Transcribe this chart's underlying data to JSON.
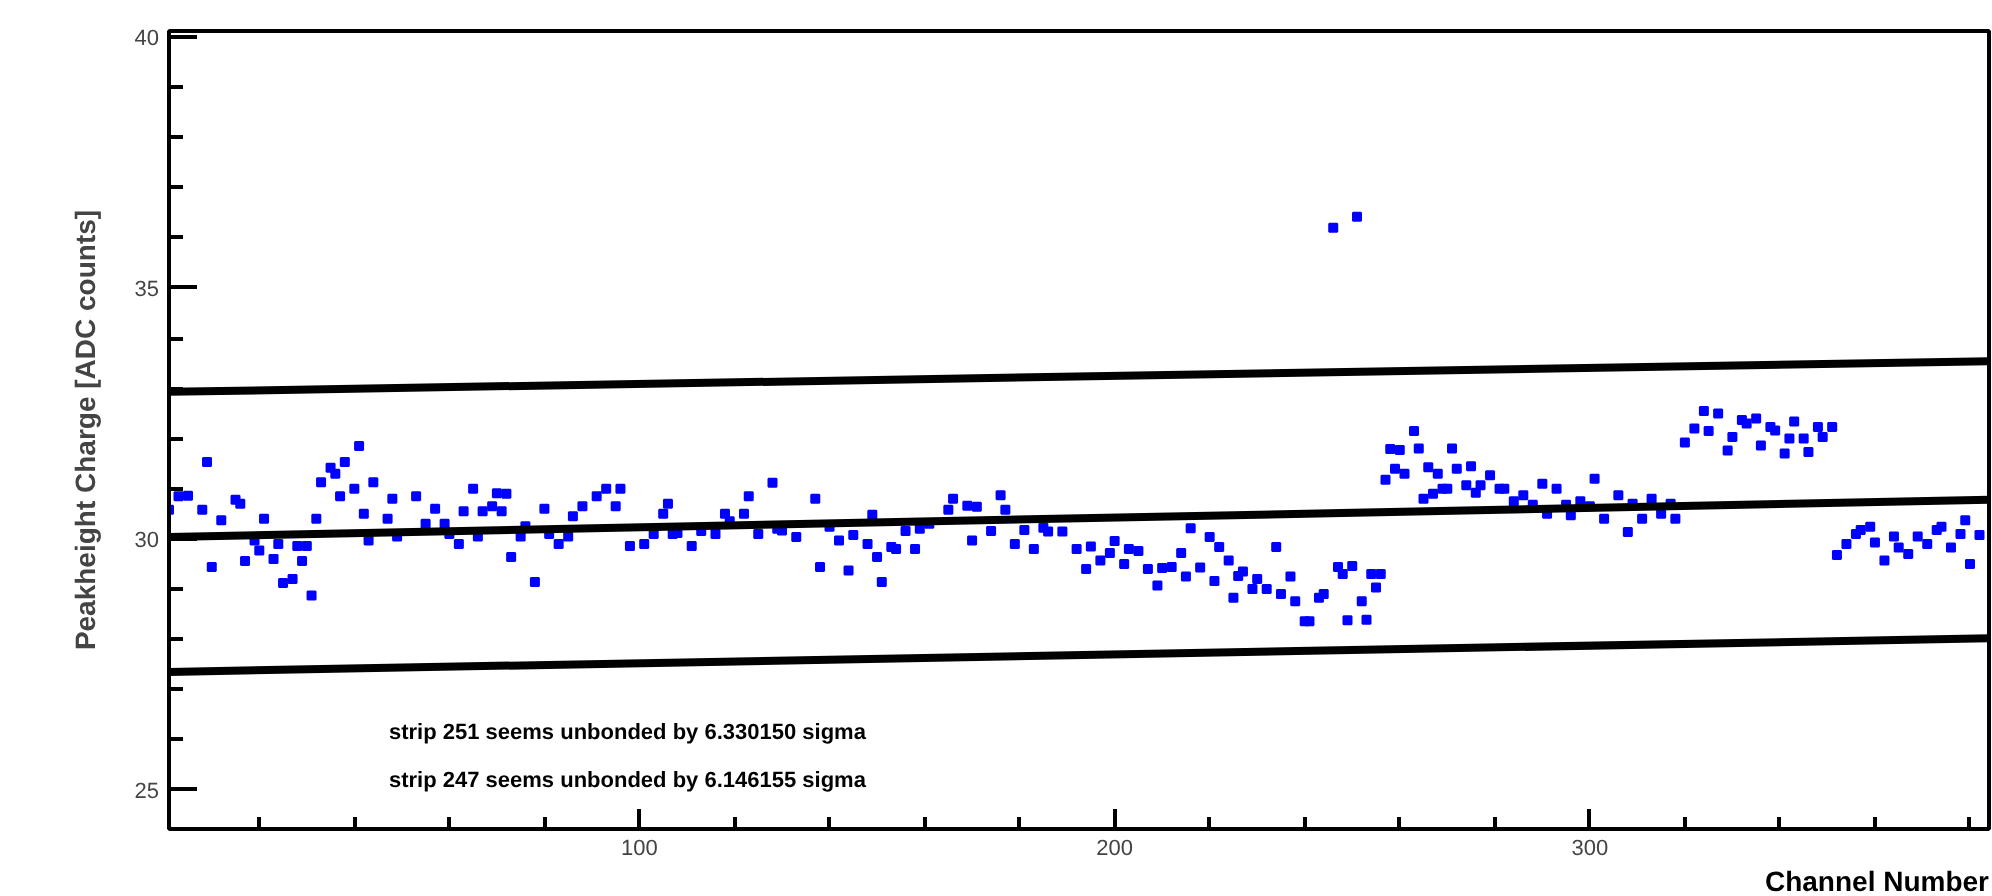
{
  "chart_data": {
    "type": "scatter",
    "xlabel": "Channel Number",
    "ylabel": "Peakheight Charge [ADC counts]",
    "annotations": [
      "strip 251 seems unbonded by 6.330150 sigma",
      "strip 247 seems unbonded by 6.146155 sigma"
    ],
    "xlim": [
      1,
      384
    ],
    "ylim": [
      24.22,
      40.12
    ],
    "xticks": [
      {
        "value": 20,
        "label": null
      },
      {
        "value": 40,
        "label": null
      },
      {
        "value": 60,
        "label": null
      },
      {
        "value": 80,
        "label": null
      },
      100,
      {
        "value": 120,
        "label": null
      },
      {
        "value": 140,
        "label": null
      },
      {
        "value": 160,
        "label": null
      },
      {
        "value": 180,
        "label": null
      },
      200,
      {
        "value": 220,
        "label": null
      },
      {
        "value": 240,
        "label": null
      },
      {
        "value": 260,
        "label": null
      },
      {
        "value": 280,
        "label": null
      },
      300,
      {
        "value": 320,
        "label": null
      },
      {
        "value": 340,
        "label": null
      },
      {
        "value": 360,
        "label": null
      },
      {
        "value": 380,
        "label": null
      }
    ],
    "yticks": [
      25,
      {
        "value": 26,
        "label": null
      },
      {
        "value": 27,
        "label": null
      },
      {
        "value": 28,
        "label": null
      },
      {
        "value": 29,
        "label": null
      },
      30,
      {
        "value": 31,
        "label": null
      },
      {
        "value": 32,
        "label": null
      },
      {
        "value": 33,
        "label": null
      },
      {
        "value": 34,
        "label": null
      },
      35,
      {
        "value": 36,
        "label": null
      },
      {
        "value": 37,
        "label": null
      },
      {
        "value": 38,
        "label": null
      },
      {
        "value": 39,
        "label": null
      },
      40
    ],
    "grid": false,
    "series": [
      {
        "marker": "square",
        "color": "#0000ff",
        "x": [
          1,
          3,
          5,
          8,
          9,
          10,
          12,
          15,
          16,
          17,
          19,
          20,
          21,
          23,
          24,
          25,
          27,
          28,
          29,
          30,
          31,
          32,
          33,
          35,
          36,
          37,
          38,
          40,
          41,
          42,
          43,
          44,
          47,
          48,
          49,
          53,
          55,
          57,
          59,
          60,
          62,
          63,
          65,
          66,
          67,
          69,
          70,
          71,
          72,
          73,
          75,
          76,
          78,
          80,
          81,
          83,
          85,
          86,
          88,
          91,
          93,
          95,
          96,
          98,
          101,
          103,
          105,
          106,
          107,
          108,
          111,
          113,
          116,
          118,
          119,
          122,
          123,
          125,
          128,
          129,
          130,
          133,
          137,
          138,
          140,
          142,
          144,
          145,
          148,
          149,
          150,
          151,
          153,
          154,
          156,
          158,
          159,
          161,
          165,
          166,
          169,
          170,
          171,
          174,
          176,
          177,
          179,
          181,
          183,
          185,
          186,
          189,
          192,
          194,
          195,
          197,
          199,
          200,
          202,
          203,
          205,
          207,
          209,
          210,
          212,
          214,
          215,
          216,
          218,
          220,
          221,
          222,
          224,
          225,
          226,
          227,
          229,
          230,
          232,
          234,
          235,
          237,
          238,
          240,
          241,
          243,
          244,
          246,
          247,
          248,
          249,
          250,
          251,
          252,
          253,
          254,
          255,
          256,
          257,
          258,
          259,
          260,
          261,
          263,
          264,
          265,
          266,
          267,
          268,
          269,
          270,
          271,
          272,
          274,
          275,
          276,
          277,
          279,
          281,
          282,
          284,
          286,
          288,
          290,
          291,
          293,
          295,
          296,
          298,
          300,
          301,
          303,
          306,
          308,
          309,
          311,
          313,
          315,
          317,
          318,
          320,
          322,
          324,
          325,
          327,
          329,
          330,
          332,
          333,
          335,
          336,
          338,
          339,
          341,
          342,
          343,
          345,
          346,
          348,
          349,
          351,
          352,
          354,
          356,
          357,
          359,
          360,
          362,
          364,
          365,
          367,
          369,
          371,
          373,
          374,
          376,
          378,
          379,
          380,
          382
        ],
        "values": [
          30.58,
          30.85,
          30.86,
          30.58,
          31.53,
          29.44,
          30.37,
          30.78,
          30.7,
          29.56,
          29.97,
          29.77,
          30.4,
          29.6,
          29.9,
          29.12,
          29.2,
          29.86,
          29.56,
          29.86,
          28.87,
          30.4,
          31.13,
          31.42,
          31.3,
          30.85,
          31.53,
          31.0,
          31.85,
          30.5,
          29.97,
          31.13,
          30.4,
          30.8,
          30.05,
          30.85,
          30.3,
          30.6,
          30.3,
          30.1,
          29.9,
          30.55,
          31.0,
          30.05,
          30.55,
          30.65,
          30.91,
          30.55,
          30.9,
          29.64,
          30.05,
          30.25,
          29.14,
          30.6,
          30.1,
          29.9,
          30.05,
          30.45,
          30.65,
          30.85,
          31.0,
          30.65,
          31.0,
          29.86,
          29.9,
          30.1,
          30.5,
          30.7,
          30.1,
          30.12,
          29.86,
          30.16,
          30.1,
          30.5,
          30.35,
          30.5,
          30.85,
          30.1,
          31.12,
          30.2,
          30.17,
          30.04,
          30.8,
          29.44,
          30.24,
          29.97,
          29.37,
          30.08,
          29.9,
          30.48,
          29.64,
          29.14,
          29.84,
          29.8,
          30.16,
          29.8,
          30.2,
          30.3,
          30.58,
          30.8,
          30.66,
          29.97,
          30.64,
          30.16,
          30.87,
          30.58,
          29.9,
          30.18,
          29.8,
          30.22,
          30.15,
          30.15,
          29.8,
          29.4,
          29.85,
          29.57,
          29.72,
          29.96,
          29.5,
          29.8,
          29.76,
          29.4,
          29.07,
          29.42,
          29.44,
          29.72,
          29.25,
          30.21,
          29.43,
          30.04,
          29.16,
          29.84,
          29.57,
          28.83,
          29.26,
          29.35,
          29.0,
          29.2,
          29.0,
          29.84,
          28.9,
          29.25,
          28.76,
          28.36,
          28.36,
          28.83,
          28.9,
          36.2,
          29.44,
          29.3,
          28.38,
          29.46,
          36.42,
          28.76,
          28.39,
          29.3,
          29.03,
          29.3,
          31.18,
          31.79,
          31.4,
          31.77,
          31.3,
          32.15,
          31.8,
          30.8,
          31.43,
          30.9,
          31.3,
          31.0,
          31.0,
          31.8,
          31.4,
          31.07,
          31.45,
          30.92,
          31.07,
          31.27,
          31.0,
          31.0,
          30.75,
          30.87,
          30.68,
          31.1,
          30.5,
          31.0,
          30.68,
          30.47,
          30.75,
          30.65,
          31.2,
          30.4,
          30.87,
          30.14,
          30.7,
          30.4,
          30.8,
          30.5,
          30.7,
          30.4,
          31.92,
          32.2,
          32.55,
          32.15,
          32.5,
          31.76,
          32.03,
          32.37,
          32.3,
          32.4,
          31.86,
          32.23,
          32.16,
          31.7,
          32.0,
          32.34,
          32.0,
          31.73,
          32.23,
          32.03,
          32.23,
          29.68,
          29.9,
          30.1,
          30.18,
          30.24,
          29.93,
          29.57,
          30.05,
          29.83,
          29.7,
          30.05,
          29.9,
          30.18,
          30.24,
          29.83,
          30.1,
          30.37,
          29.5,
          30.08
        ]
      },
      {
        "type": "line",
        "color": "#000000",
        "x": [
          1,
          384
        ],
        "values": [
          32.93,
          33.54
        ]
      },
      {
        "type": "line",
        "color": "#000000",
        "x": [
          1,
          384
        ],
        "values": [
          30.04,
          30.78
        ]
      },
      {
        "type": "line",
        "color": "#000000",
        "x": [
          1,
          384
        ],
        "values": [
          27.35,
          28.02
        ]
      }
    ]
  }
}
